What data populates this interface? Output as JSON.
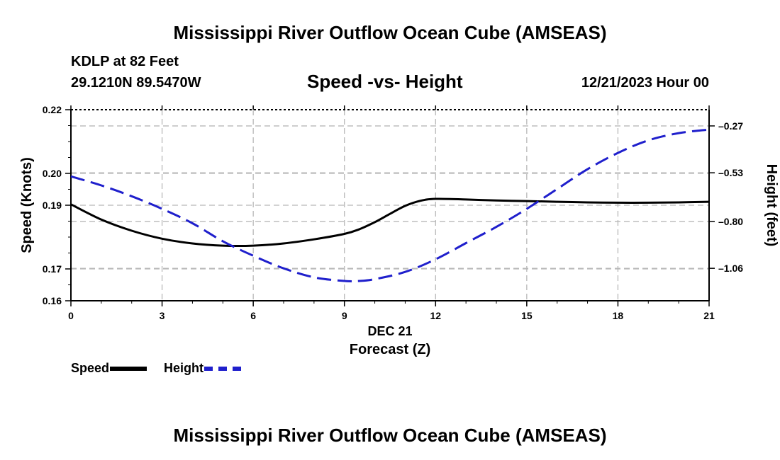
{
  "header": {
    "title": "Mississippi River Outflow Ocean Cube (AMSEAS)",
    "station": "KDLP at 82 Feet",
    "coordinates": "29.1210N  89.5470W",
    "subtitle": "Speed -vs- Height",
    "datetime": "12/21/2023 Hour 00"
  },
  "footer": {
    "title": "Mississippi River Outflow Ocean Cube (AMSEAS)"
  },
  "chart_data": {
    "type": "line",
    "title": "Speed -vs- Height",
    "xlabel_date": "DEC 21",
    "xlabel": "Forecast (Z)",
    "ylabel": "Speed (Knots)",
    "y2label": "Height (feet)",
    "xlim": [
      0,
      21
    ],
    "ylim": [
      0.16,
      0.22
    ],
    "y2lim": [
      -1.24,
      -0.18
    ],
    "x_ticks": [
      0,
      3,
      6,
      9,
      12,
      15,
      18,
      21
    ],
    "x_tick_labels": [
      "0",
      "3",
      "6",
      "9",
      "12",
      "15",
      "18",
      "21"
    ],
    "y_ticks": [
      0.16,
      0.17,
      0.19,
      0.2,
      0.22
    ],
    "y_tick_labels": [
      "0.16",
      "0.17",
      "0.19",
      "0.20",
      "0.22"
    ],
    "y2_ticks": [
      -1.06,
      -0.8,
      -0.53,
      -0.27
    ],
    "y2_tick_labels": [
      "–1.06",
      "–0.80",
      "–0.53",
      "–0.27"
    ],
    "grid": true,
    "series": [
      {
        "name": "Speed",
        "axis": "left",
        "color": "#000000",
        "dash": "solid",
        "x": [
          0,
          1,
          2,
          3,
          4,
          5,
          6,
          7,
          8,
          9,
          9.5,
          10,
          10.5,
          11,
          11.5,
          12,
          13,
          14,
          15,
          16,
          17,
          18,
          19,
          20,
          21
        ],
        "values": [
          0.1903,
          0.1855,
          0.182,
          0.1795,
          0.178,
          0.1773,
          0.1773,
          0.178,
          0.1793,
          0.181,
          0.1825,
          0.1847,
          0.1873,
          0.1898,
          0.1914,
          0.192,
          0.1918,
          0.1915,
          0.1913,
          0.1911,
          0.1909,
          0.1908,
          0.1908,
          0.1909,
          0.1911
        ]
      },
      {
        "name": "Height",
        "axis": "right",
        "color": "#1f1fcc",
        "dash": "dashed",
        "x": [
          0,
          1,
          2,
          3,
          4,
          5,
          6,
          7,
          8,
          9,
          9.5,
          10,
          11,
          12,
          13,
          14,
          15,
          16,
          17,
          18,
          19,
          20,
          21
        ],
        "values": [
          -0.55,
          -0.6,
          -0.66,
          -0.73,
          -0.81,
          -0.91,
          -0.99,
          -1.06,
          -1.11,
          -1.13,
          -1.13,
          -1.12,
          -1.08,
          -1.01,
          -0.92,
          -0.83,
          -0.73,
          -0.62,
          -0.51,
          -0.42,
          -0.35,
          -0.31,
          -0.29
        ]
      }
    ]
  },
  "legend": {
    "speed_label": "Speed",
    "height_label": "Height"
  }
}
